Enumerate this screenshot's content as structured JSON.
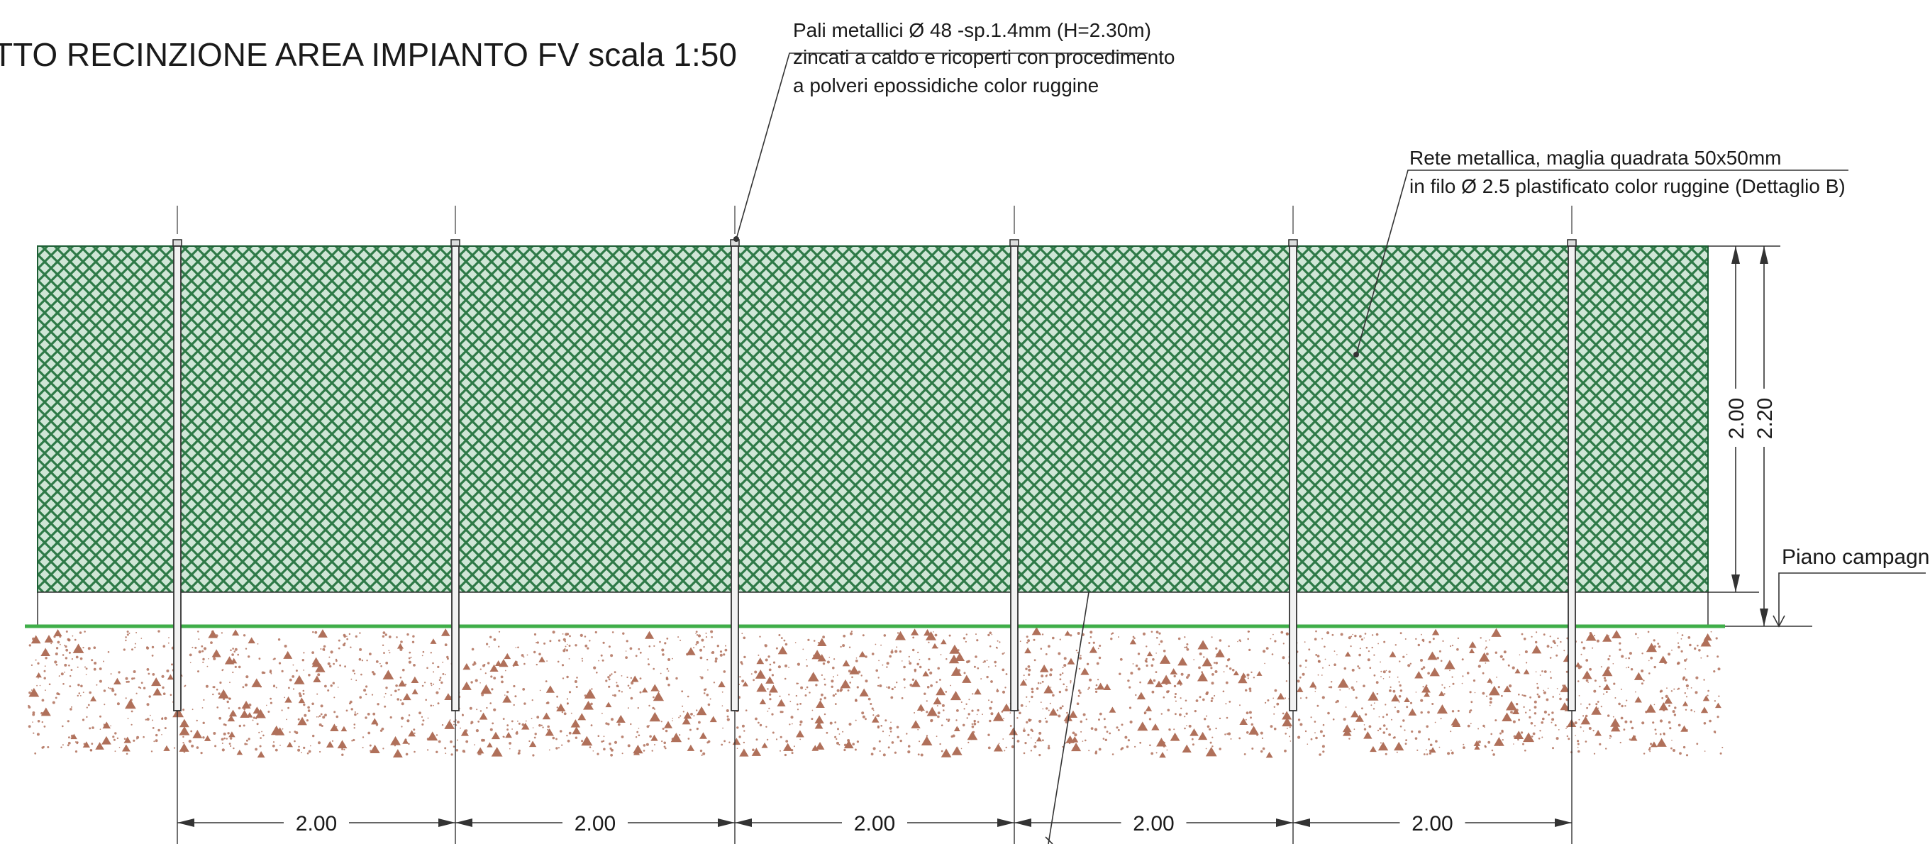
{
  "title": "TTO RECINZIONE AREA IMPIANTO FV scala 1:50",
  "annotations": {
    "posts": [
      "Pali metallici Ø 48 -sp.1.4mm (H=2.30m)",
      "zincati a caldo e ricoperti con procedimento",
      "a polveri epossidiche color ruggine"
    ],
    "mesh": [
      "Rete metallica, maglia quadrata 50x50mm",
      "in filo Ø 2.5 plastificato color ruggine (Dettaglio B)"
    ]
  },
  "ground_label": "Piano campagna",
  "vertical_dimensions": {
    "mesh_height": "2.00",
    "total_height": "2.20"
  },
  "spacing_dimensions": [
    "2.00",
    "2.00",
    "2.00",
    "2.00",
    "2.00",
    "2.00"
  ],
  "colors": {
    "mesh": "#2e7a47",
    "mesh_light": "#5fa877",
    "ground_line": "#3fae49",
    "soil_dots": "#b0705a",
    "lines": "#222222",
    "post_fill": "#f2f2f2"
  }
}
